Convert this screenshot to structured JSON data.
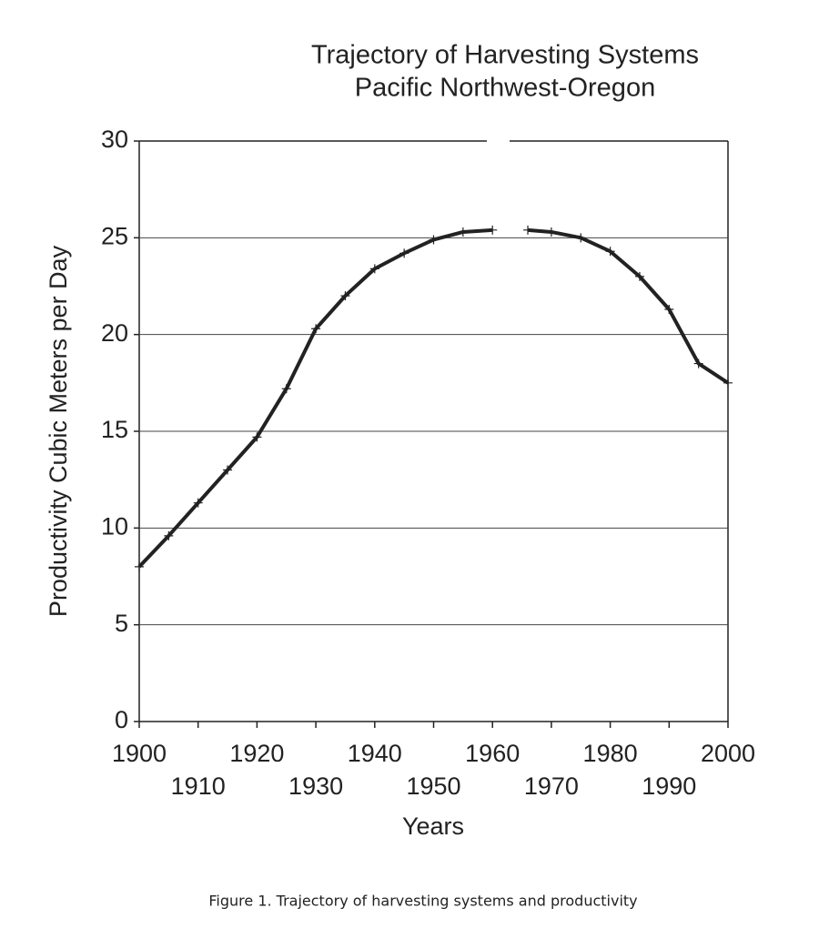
{
  "chart_data": {
    "type": "line",
    "title": [
      "Trajectory of Harvesting Systems",
      "Pacific Northwest-Oregon"
    ],
    "x_label": "Years",
    "y_label": "Productivity Cubic Meters per Day",
    "caption": "Figure 1. Trajectory of harvesting systems and productivity",
    "x": [
      1900,
      1905,
      1910,
      1915,
      1920,
      1925,
      1930,
      1935,
      1940,
      1945,
      1950,
      1955,
      1960,
      1963,
      1966,
      1970,
      1975,
      1980,
      1985,
      1990,
      1995,
      2000
    ],
    "series": [
      {
        "color": "#222222",
        "values": [
          8,
          9.6,
          11.3,
          13,
          14.7,
          17.2,
          20.3,
          22,
          23.4,
          24.2,
          24.9,
          25.3,
          25.4,
          null,
          25.4,
          25.3,
          25,
          24.3,
          23,
          21.3,
          18.5,
          17.5
        ]
      }
    ],
    "xlim": [
      1900,
      2000
    ],
    "xticks": [
      1900,
      1910,
      1920,
      1930,
      1940,
      1950,
      1960,
      1970,
      1980,
      1990,
      2000
    ],
    "ylim": [
      0,
      30
    ],
    "yticks": [
      0,
      5,
      10,
      15,
      20,
      25,
      30
    ],
    "grid": true
  }
}
